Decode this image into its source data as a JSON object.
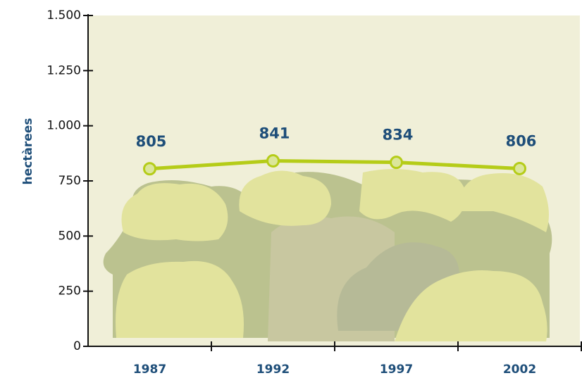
{
  "chart_data": {
    "type": "line",
    "y_label": "hectàrees",
    "categories": [
      "1987",
      "1992",
      "1997",
      "2002"
    ],
    "series": [
      {
        "name": "hectàrees",
        "color": "#b5cc18",
        "values": [
          805,
          841,
          834,
          806
        ]
      }
    ],
    "ylim": [
      0,
      1500
    ],
    "yticks": [
      0,
      250,
      500,
      750,
      {
        "value": 1000,
        "label": "1.000"
      },
      {
        "value": 1250,
        "label": "1.250"
      },
      {
        "value": 1500,
        "label": "1.500"
      }
    ],
    "grid": false
  }
}
